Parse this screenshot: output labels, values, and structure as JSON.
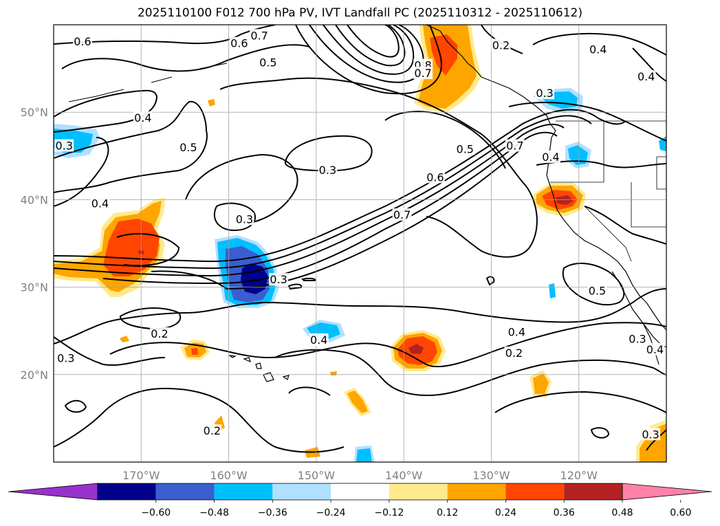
{
  "title": "2025110100 F012 700 hPa PV, IVT Landfall PC (2025110312 - 2025110612)",
  "map": {
    "lon_range": [
      -180,
      -110
    ],
    "lat_range": [
      10,
      60
    ],
    "lon_ticks": [
      {
        "lon": -170,
        "label": "170°W"
      },
      {
        "lon": -160,
        "label": "160°W"
      },
      {
        "lon": -150,
        "label": "150°W"
      },
      {
        "lon": -140,
        "label": "140°W"
      },
      {
        "lon": -130,
        "label": "130°W"
      },
      {
        "lon": -120,
        "label": "120°W"
      }
    ],
    "lat_ticks": [
      {
        "lat": 20,
        "label": "20°N"
      },
      {
        "lat": 30,
        "label": "30°N"
      },
      {
        "lat": 40,
        "label": "40°N"
      },
      {
        "lat": 50,
        "label": "50°N"
      }
    ],
    "contour_labels": [
      {
        "text": "0.6",
        "lon": -176.7,
        "lat": 58.1
      },
      {
        "text": "0.6",
        "lon": -158.8,
        "lat": 57.9
      },
      {
        "text": "0.7",
        "lon": -156.5,
        "lat": 58.8
      },
      {
        "text": "0.5",
        "lon": -155.5,
        "lat": 55.7
      },
      {
        "text": "0.8",
        "lon": -137.8,
        "lat": 55.4
      },
      {
        "text": "0.7",
        "lon": -137.8,
        "lat": 54.5
      },
      {
        "text": "0.2",
        "lon": -128.9,
        "lat": 57.7
      },
      {
        "text": "0.4",
        "lon": -117.8,
        "lat": 57.2
      },
      {
        "text": "0.4",
        "lon": -112.3,
        "lat": 54.1
      },
      {
        "text": "0.3",
        "lon": -123.9,
        "lat": 52.2
      },
      {
        "text": "0.4",
        "lon": -169.8,
        "lat": 49.4
      },
      {
        "text": "0.5",
        "lon": -164.6,
        "lat": 46.0
      },
      {
        "text": "0.3",
        "lon": -178.8,
        "lat": 46.2
      },
      {
        "text": "0.5",
        "lon": -133.0,
        "lat": 45.8
      },
      {
        "text": "0.7",
        "lon": -127.3,
        "lat": 46.2
      },
      {
        "text": "0.4",
        "lon": -123.2,
        "lat": 44.9
      },
      {
        "text": "0.3",
        "lon": -148.7,
        "lat": 43.4
      },
      {
        "text": "0.6",
        "lon": -136.4,
        "lat": 42.6
      },
      {
        "text": "0.4",
        "lon": -174.7,
        "lat": 39.6
      },
      {
        "text": "0.3",
        "lon": -158.2,
        "lat": 37.8
      },
      {
        "text": "0.7",
        "lon": -140.2,
        "lat": 38.3
      },
      {
        "text": "0.3",
        "lon": -154.3,
        "lat": 30.9
      },
      {
        "text": "0.5",
        "lon": -117.9,
        "lat": 29.6
      },
      {
        "text": "0.2",
        "lon": -167.9,
        "lat": 24.7
      },
      {
        "text": "0.4",
        "lon": -149.7,
        "lat": 24.0
      },
      {
        "text": "0.4",
        "lon": -127.1,
        "lat": 24.9
      },
      {
        "text": "0.2",
        "lon": -127.4,
        "lat": 22.5
      },
      {
        "text": "0.3",
        "lon": -113.3,
        "lat": 24.1
      },
      {
        "text": "0.4",
        "lon": -111.3,
        "lat": 22.9
      },
      {
        "text": "0.3",
        "lon": -178.6,
        "lat": 21.9
      },
      {
        "text": "0.2",
        "lon": -161.9,
        "lat": 13.6
      },
      {
        "text": "0.3",
        "lon": -111.8,
        "lat": 13.2
      }
    ]
  },
  "colorbar": {
    "colors": [
      "#9932cc",
      "#00008b",
      "#3a5ed0",
      "#00bfff",
      "#b0e0ff",
      "#ffffff",
      "#ffea8c",
      "#ffa500",
      "#ff4500",
      "#b22222",
      "#ff82a8"
    ],
    "tick_labels": [
      "−0.60",
      "−0.48",
      "−0.36",
      "−0.24",
      "−0.12",
      "0.12",
      "0.24",
      "0.36",
      "0.48",
      "0.60"
    ],
    "tick_values": [
      -0.6,
      -0.48,
      -0.36,
      -0.24,
      -0.12,
      0.12,
      0.24,
      0.36,
      0.48,
      0.6
    ]
  }
}
